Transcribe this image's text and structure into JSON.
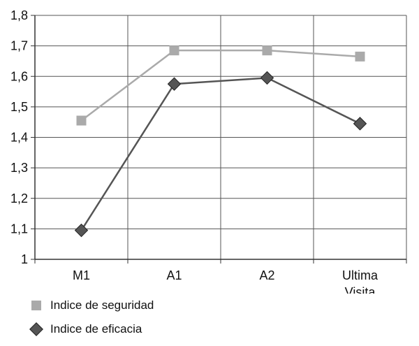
{
  "chart_data": {
    "type": "line",
    "categories": [
      "M1",
      "A1",
      "A2",
      "Ultima Visita"
    ],
    "category_lines": [
      [
        "M1"
      ],
      [
        "A1"
      ],
      [
        "A2"
      ],
      [
        "Ultima",
        "Visita"
      ]
    ],
    "series": [
      {
        "name": "Indice de seguridad",
        "values": [
          1.455,
          1.685,
          1.685,
          1.665
        ],
        "color": "#aaaaaa",
        "marker": "square"
      },
      {
        "name": "Indice de eficacia",
        "values": [
          1.095,
          1.575,
          1.595,
          1.445
        ],
        "color": "#555555",
        "marker": "diamond"
      }
    ],
    "ylim": [
      1.0,
      1.8
    ],
    "yticks": [
      "1",
      "1,1",
      "1,2",
      "1,3",
      "1,4",
      "1,5",
      "1,6",
      "1,7",
      "1,8"
    ],
    "grid": true,
    "legend_position": "bottom-left",
    "title": "",
    "xlabel": "",
    "ylabel": ""
  }
}
